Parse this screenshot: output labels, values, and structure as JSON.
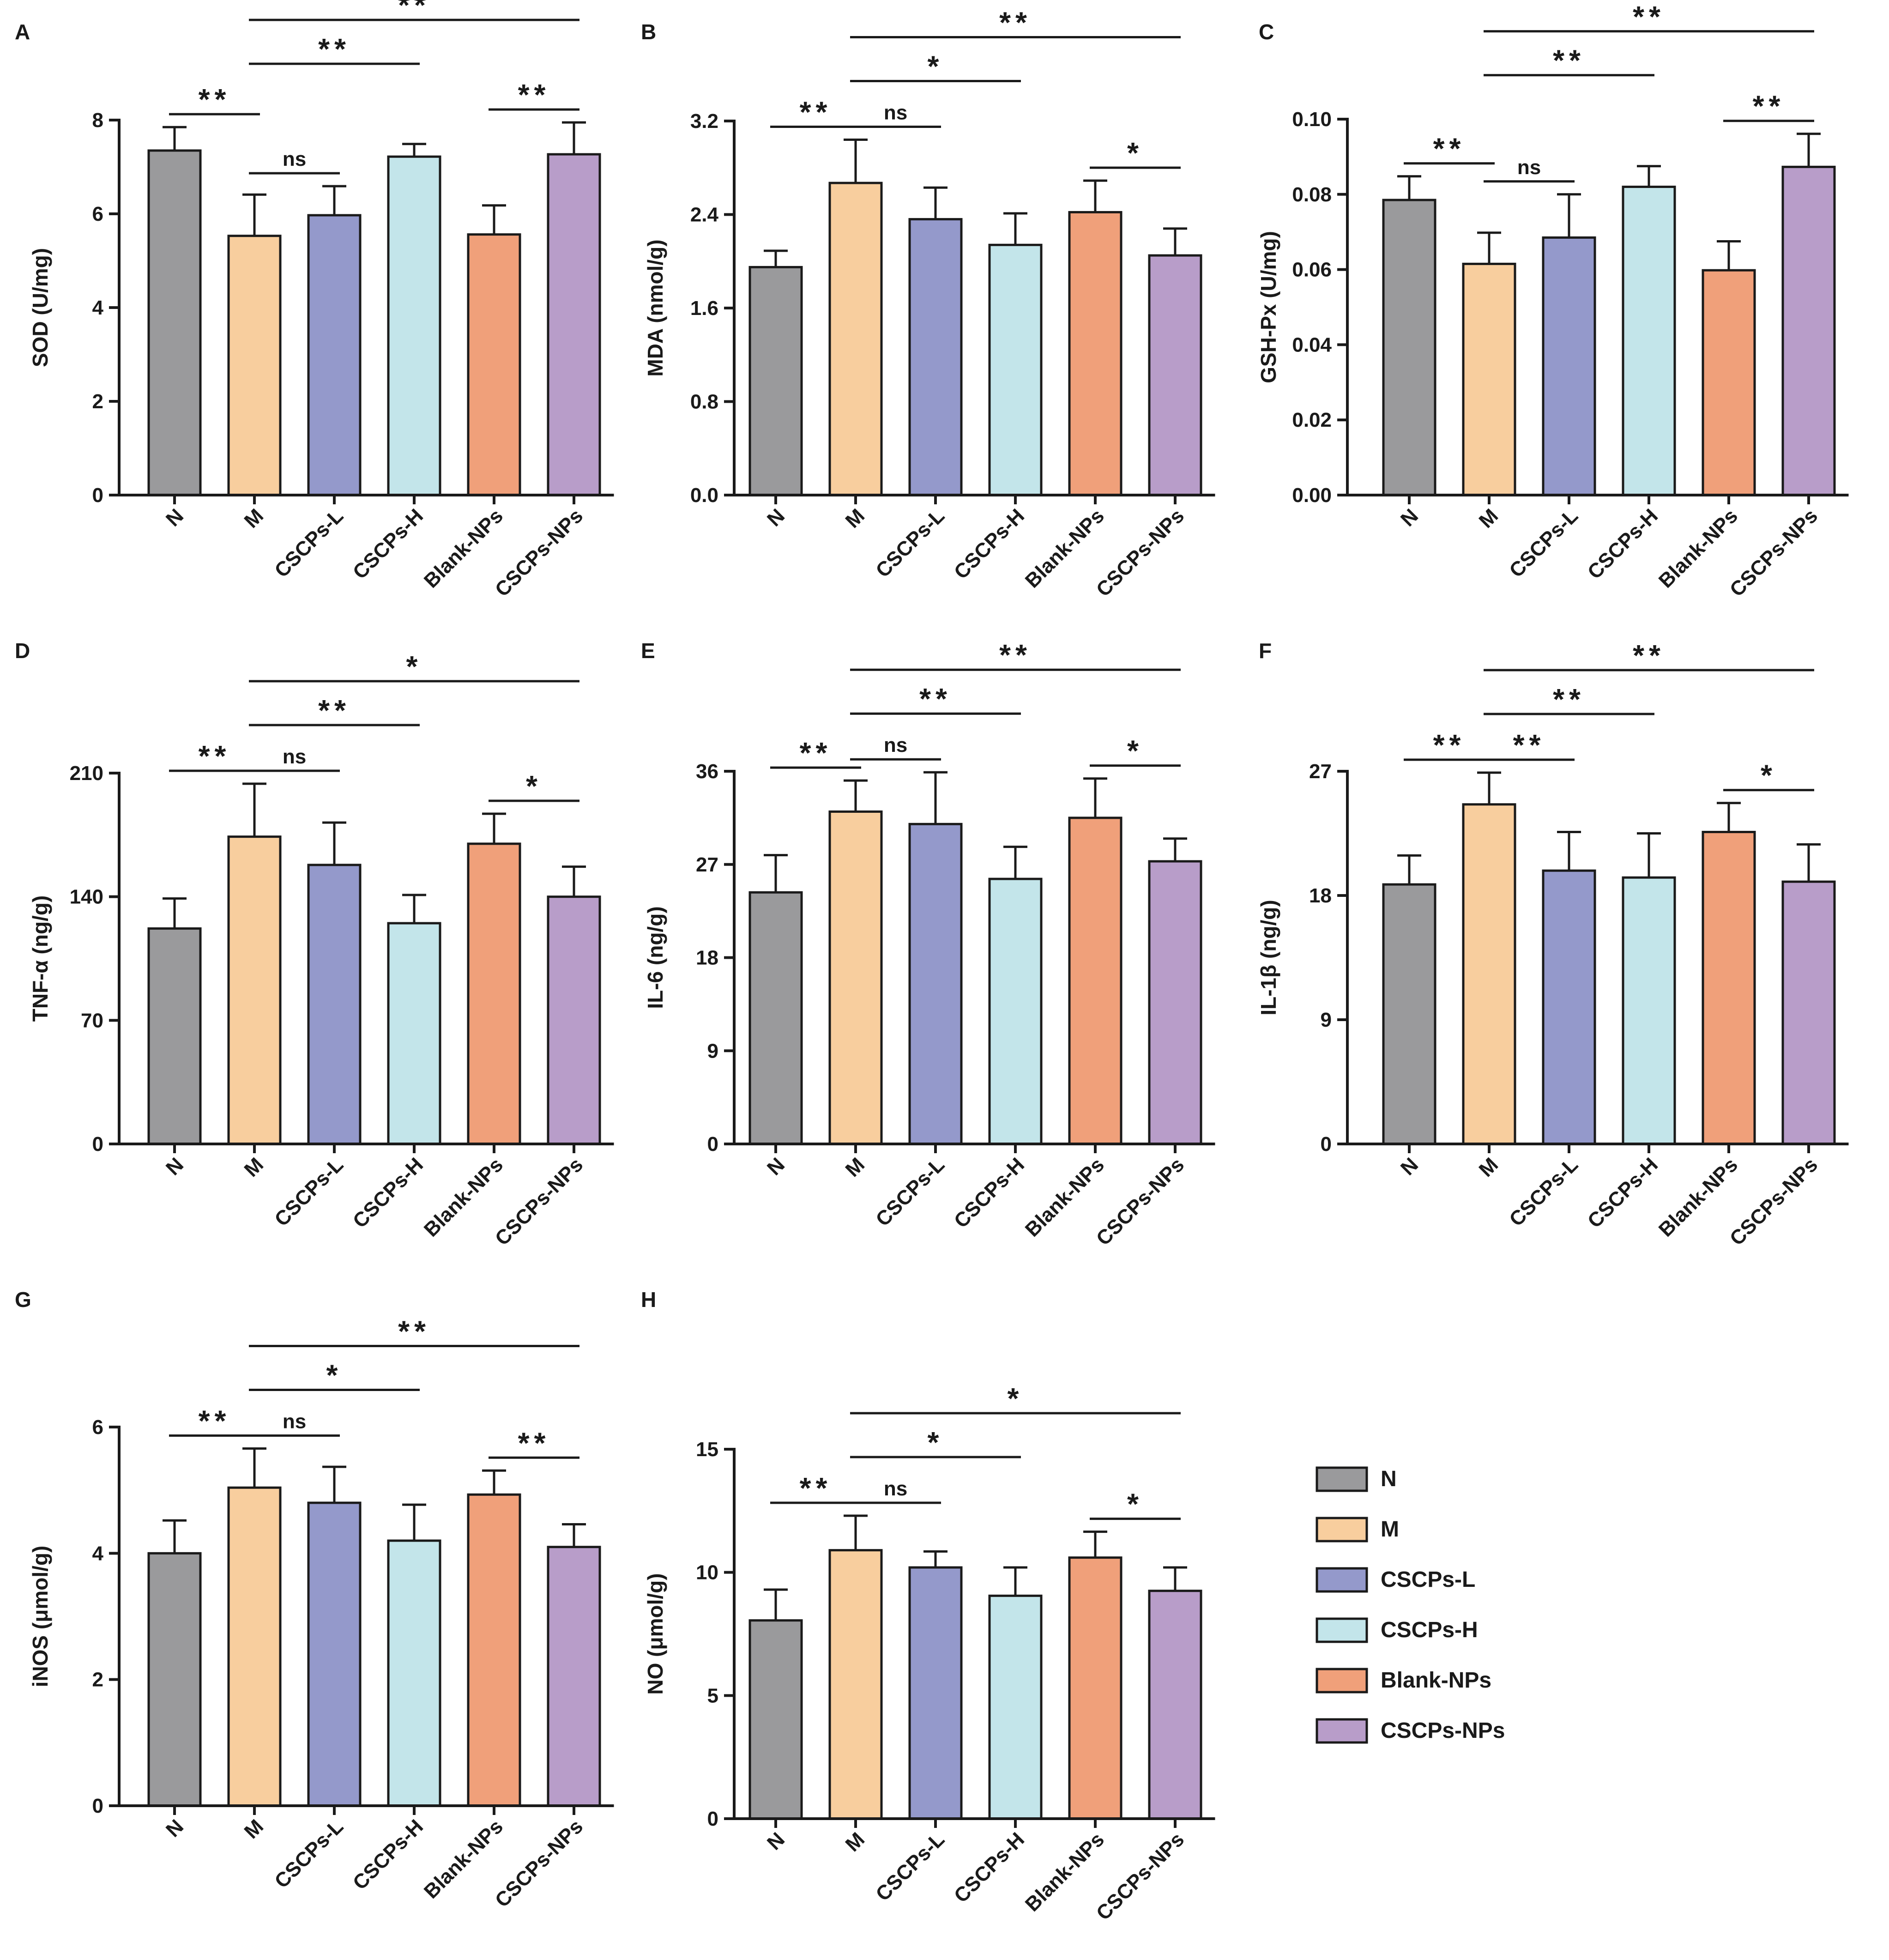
{
  "figure": {
    "groups": [
      "N",
      "M",
      "CSCPs-L",
      "CSCPs-H",
      "Blank-NPs",
      "CSCPs-NPs"
    ],
    "colors": [
      "#9a9a9c",
      "#f8ce9e",
      "#9499cb",
      "#c3e5ea",
      "#f0a07a",
      "#b89dc9"
    ]
  },
  "legend": {
    "entries": [
      "N",
      "M",
      "CSCPs-L",
      "CSCPs-H",
      "Blank-NPs",
      "CSCPs-NPs"
    ]
  },
  "chart_data": [
    {
      "type": "bar",
      "panel": "A",
      "ylabel": "SOD (U/mg)",
      "ylim": [
        0,
        8
      ],
      "yticks": [
        0,
        2,
        4,
        6,
        8
      ],
      "tick_labels": [
        "0",
        "2",
        "4",
        "6",
        "8"
      ],
      "categories": [
        "N",
        "M",
        "CSCPs-L",
        "CSCPs-H",
        "Blank-NPs",
        "CSCPs-NPs"
      ],
      "values": [
        7.35,
        5.53,
        5.97,
        7.22,
        5.56,
        7.27
      ],
      "errors": [
        0.5,
        0.88,
        0.62,
        0.27,
        0.62,
        0.68
      ],
      "significance": [
        {
          "from": 0,
          "to": 1,
          "label": "**"
        },
        {
          "from": 1,
          "to": 2,
          "label": "ns"
        },
        {
          "from": 1,
          "to": 3,
          "label": "**"
        },
        {
          "from": 1,
          "to": 5,
          "label": "**"
        },
        {
          "from": 4,
          "to": 5,
          "label": "**"
        }
      ]
    },
    {
      "type": "bar",
      "panel": "B",
      "ylabel": "MDA (nmol/g)",
      "ylim": [
        0,
        3.2
      ],
      "yticks": [
        0,
        0.8,
        1.6,
        2.4,
        3.2
      ],
      "tick_labels": [
        "0.0",
        "0.8",
        "1.6",
        "2.4",
        "3.2"
      ],
      "categories": [
        "N",
        "M",
        "CSCPs-L",
        "CSCPs-H",
        "Blank-NPs",
        "CSCPs-NPs"
      ],
      "values": [
        1.95,
        2.67,
        2.36,
        2.14,
        2.42,
        2.05
      ],
      "errors": [
        0.14,
        0.37,
        0.27,
        0.27,
        0.27,
        0.23
      ],
      "significance": [
        {
          "from": 0,
          "to": 1,
          "label": "**"
        },
        {
          "from": 1,
          "to": 2,
          "label": "ns"
        },
        {
          "from": 1,
          "to": 3,
          "label": "*"
        },
        {
          "from": 1,
          "to": 5,
          "label": "**"
        },
        {
          "from": 4,
          "to": 5,
          "label": "*"
        }
      ]
    },
    {
      "type": "bar",
      "panel": "C",
      "ylabel": "GSH-Px (U/mg)",
      "ylim": [
        0,
        0.1
      ],
      "yticks": [
        0,
        0.02,
        0.04,
        0.06,
        0.08,
        0.1
      ],
      "tick_labels": [
        "0.00",
        "0.02",
        "0.04",
        "0.06",
        "0.08",
        "0.10"
      ],
      "categories": [
        "N",
        "M",
        "CSCPs-L",
        "CSCPs-H",
        "Blank-NPs",
        "CSCPs-NPs"
      ],
      "values": [
        0.0785,
        0.0615,
        0.0685,
        0.082,
        0.0598,
        0.0873
      ],
      "errors": [
        0.0063,
        0.0083,
        0.0115,
        0.0055,
        0.0077,
        0.0088
      ],
      "significance": [
        {
          "from": 0,
          "to": 1,
          "label": "**"
        },
        {
          "from": 1,
          "to": 2,
          "label": "ns"
        },
        {
          "from": 1,
          "to": 3,
          "label": "**"
        },
        {
          "from": 1,
          "to": 5,
          "label": "**"
        },
        {
          "from": 4,
          "to": 5,
          "label": "**"
        }
      ]
    },
    {
      "type": "bar",
      "panel": "D",
      "ylabel": "TNF-α (ng/g)",
      "ylim": [
        0,
        210
      ],
      "yticks": [
        0,
        70,
        140,
        210
      ],
      "tick_labels": [
        "0",
        "70",
        "140",
        "210"
      ],
      "categories": [
        "N",
        "M",
        "CSCPs-L",
        "CSCPs-H",
        "Blank-NPs",
        "CSCPs-NPs"
      ],
      "values": [
        122,
        174,
        158,
        125,
        170,
        140
      ],
      "errors": [
        17,
        30,
        24,
        16,
        17,
        17
      ],
      "significance": [
        {
          "from": 0,
          "to": 1,
          "label": "**"
        },
        {
          "from": 1,
          "to": 2,
          "label": "ns"
        },
        {
          "from": 1,
          "to": 3,
          "label": "**"
        },
        {
          "from": 1,
          "to": 5,
          "label": "*"
        },
        {
          "from": 4,
          "to": 5,
          "label": "*"
        }
      ]
    },
    {
      "type": "bar",
      "panel": "E",
      "ylabel": "IL-6 (ng/g)",
      "ylim": [
        0,
        36
      ],
      "yticks": [
        0,
        9,
        18,
        27,
        36
      ],
      "tick_labels": [
        "0",
        "9",
        "18",
        "27",
        "36"
      ],
      "categories": [
        "N",
        "M",
        "CSCPs-L",
        "CSCPs-H",
        "Blank-NPs",
        "CSCPs-NPs"
      ],
      "values": [
        24.3,
        32.1,
        30.9,
        25.6,
        31.5,
        27.3
      ],
      "errors": [
        3.6,
        3.0,
        5.0,
        3.1,
        3.8,
        2.2
      ],
      "significance": [
        {
          "from": 0,
          "to": 1,
          "label": "**"
        },
        {
          "from": 1,
          "to": 2,
          "label": "ns"
        },
        {
          "from": 1,
          "to": 3,
          "label": "**"
        },
        {
          "from": 1,
          "to": 5,
          "label": "**"
        },
        {
          "from": 4,
          "to": 5,
          "label": "*"
        }
      ]
    },
    {
      "type": "bar",
      "panel": "F",
      "ylabel": "IL-1β (ng/g)",
      "ylim": [
        0,
        27
      ],
      "yticks": [
        0,
        9,
        18,
        27
      ],
      "tick_labels": [
        "0",
        "9",
        "18",
        "27"
      ],
      "categories": [
        "N",
        "M",
        "CSCPs-L",
        "CSCPs-H",
        "Blank-NPs",
        "CSCPs-NPs"
      ],
      "values": [
        18.8,
        24.6,
        19.8,
        19.3,
        22.6,
        19.0
      ],
      "errors": [
        2.1,
        2.3,
        2.8,
        3.2,
        2.1,
        2.7
      ],
      "significance": [
        {
          "from": 0,
          "to": 1,
          "label": "**"
        },
        {
          "from": 1,
          "to": 2,
          "label": "**"
        },
        {
          "from": 1,
          "to": 3,
          "label": "**"
        },
        {
          "from": 1,
          "to": 5,
          "label": "**"
        },
        {
          "from": 4,
          "to": 5,
          "label": "*"
        }
      ]
    },
    {
      "type": "bar",
      "panel": "G",
      "ylabel": "iNOS (μmol/g)",
      "ylim": [
        0,
        6
      ],
      "yticks": [
        0,
        2,
        4,
        6
      ],
      "tick_labels": [
        "0",
        "2",
        "4",
        "6"
      ],
      "categories": [
        "N",
        "M",
        "CSCPs-L",
        "CSCPs-H",
        "Blank-NPs",
        "CSCPs-NPs"
      ],
      "values": [
        4.0,
        5.04,
        4.8,
        4.2,
        4.93,
        4.1
      ],
      "errors": [
        0.52,
        0.62,
        0.57,
        0.57,
        0.38,
        0.36
      ],
      "significance": [
        {
          "from": 0,
          "to": 1,
          "label": "**"
        },
        {
          "from": 1,
          "to": 2,
          "label": "ns"
        },
        {
          "from": 1,
          "to": 3,
          "label": "*"
        },
        {
          "from": 1,
          "to": 5,
          "label": "**"
        },
        {
          "from": 4,
          "to": 5,
          "label": "**"
        }
      ]
    },
    {
      "type": "bar",
      "panel": "H",
      "ylabel": "NO (μmol/g)",
      "ylim": [
        0,
        15
      ],
      "yticks": [
        0,
        5,
        10,
        15
      ],
      "tick_labels": [
        "0",
        "5",
        "10",
        "15"
      ],
      "categories": [
        "N",
        "M",
        "CSCPs-L",
        "CSCPs-H",
        "Blank-NPs",
        "CSCPs-NPs"
      ],
      "values": [
        8.05,
        10.9,
        10.2,
        9.05,
        10.6,
        9.25
      ],
      "errors": [
        1.25,
        1.4,
        0.65,
        1.15,
        1.05,
        0.95
      ],
      "significance": [
        {
          "from": 0,
          "to": 1,
          "label": "**"
        },
        {
          "from": 1,
          "to": 2,
          "label": "ns"
        },
        {
          "from": 1,
          "to": 3,
          "label": "*"
        },
        {
          "from": 1,
          "to": 5,
          "label": "*"
        },
        {
          "from": 4,
          "to": 5,
          "label": "*"
        }
      ]
    }
  ]
}
